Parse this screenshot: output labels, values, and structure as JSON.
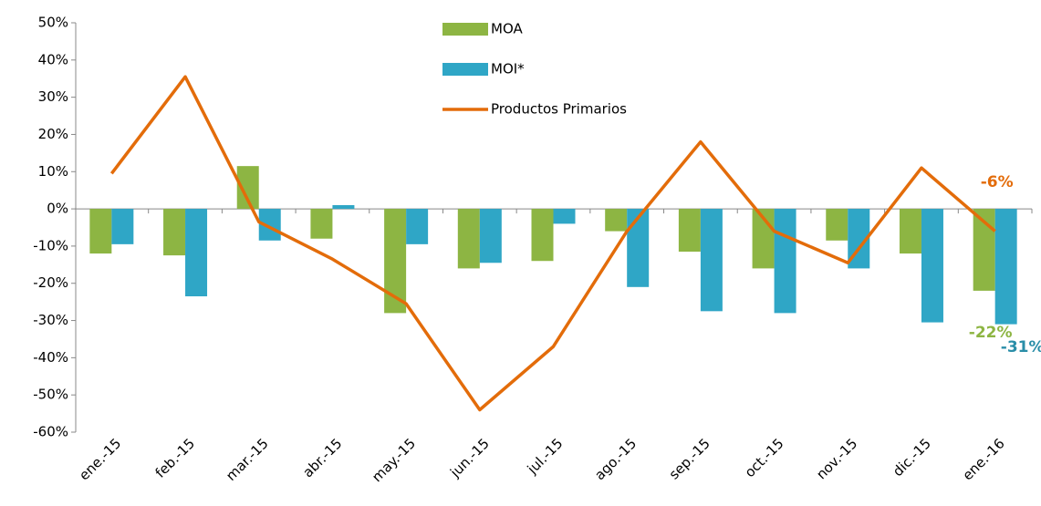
{
  "chart_data": {
    "type": "bar_line",
    "categories": [
      "ene.-15",
      "feb.-15",
      "mar.-15",
      "abr.-15",
      "may.-15",
      "jun.-15",
      "jul.-15",
      "ago.-15",
      "sep.-15",
      "oct.-15",
      "nov.-15",
      "dic.-15",
      "ene.-16"
    ],
    "series": [
      {
        "name": "MOA",
        "type": "bar",
        "color": "#8db543",
        "values": [
          -12,
          -12.5,
          11.5,
          -8,
          -28,
          -16,
          -14,
          -6,
          -11.5,
          -16,
          -8.5,
          -12,
          -22
        ],
        "value_labels": [
          null,
          null,
          null,
          null,
          null,
          null,
          null,
          null,
          null,
          null,
          null,
          null,
          "-22%"
        ]
      },
      {
        "name": "MOI*",
        "type": "bar",
        "color": "#2fa6c6",
        "values": [
          -9.5,
          -23.5,
          -8.5,
          1,
          -9.5,
          -14.5,
          -4,
          -21,
          -27.5,
          -28,
          -16,
          -30.5,
          -31
        ],
        "value_labels": [
          null,
          null,
          null,
          null,
          null,
          null,
          null,
          null,
          null,
          null,
          null,
          null,
          "-31%"
        ]
      },
      {
        "name": "Productos Primarios",
        "type": "line",
        "color": "#e36c0a",
        "values": [
          9.5,
          35.5,
          -3.5,
          -13.5,
          -25.5,
          -54,
          -37,
          -6,
          18,
          -6,
          -14.5,
          11,
          -6
        ],
        "value_labels": [
          null,
          null,
          null,
          null,
          null,
          null,
          null,
          null,
          null,
          null,
          null,
          null,
          "-6%"
        ]
      }
    ],
    "ylim": [
      -60,
      50
    ],
    "yticks": [
      {
        "value": -60,
        "label": "-60%"
      },
      {
        "value": -50,
        "label": "-50%"
      },
      {
        "value": -40,
        "label": "-40%"
      },
      {
        "value": -30,
        "label": "-30%"
      },
      {
        "value": -20,
        "label": "-20%"
      },
      {
        "value": -10,
        "label": "-10%"
      },
      {
        "value": 0,
        "label": "0%"
      },
      {
        "value": 10,
        "label": "10%"
      },
      {
        "value": 20,
        "label": "20%"
      },
      {
        "value": 30,
        "label": "30%"
      },
      {
        "value": 40,
        "label": "40%"
      },
      {
        "value": 50,
        "label": "50%"
      }
    ]
  }
}
